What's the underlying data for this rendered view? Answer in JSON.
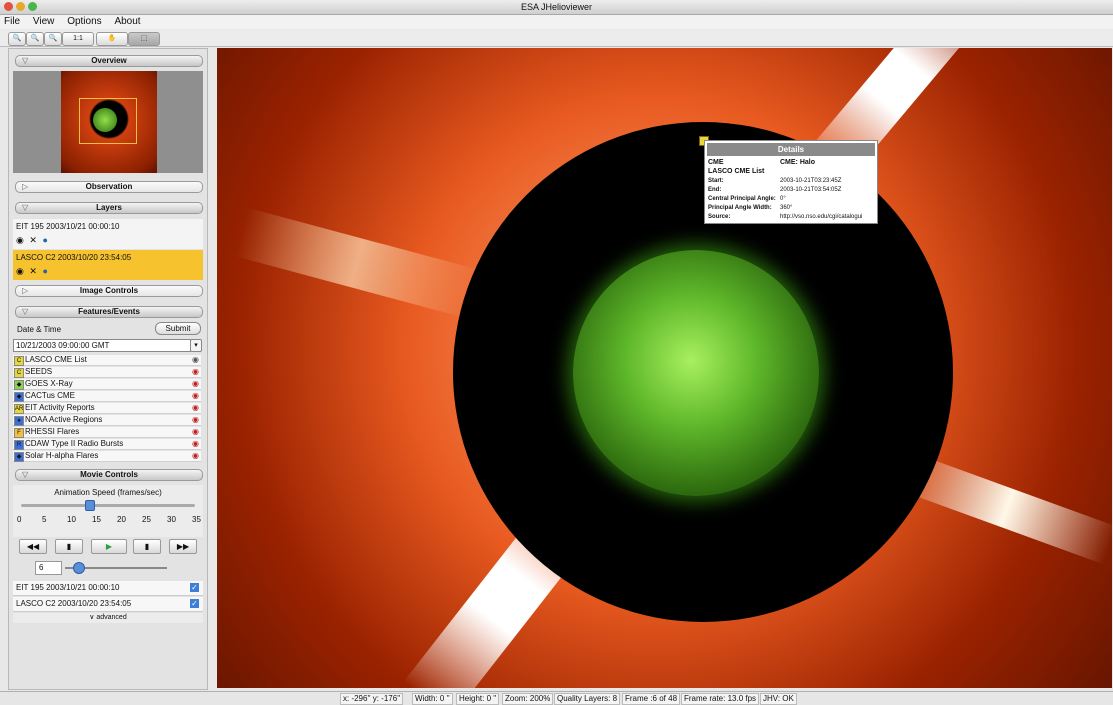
{
  "window": {
    "title": "ESA JHelioviewer",
    "buttons": [
      {
        "name": "close-window-button",
        "color": "#e3513f"
      },
      {
        "name": "minimize-window-button",
        "color": "#e6a92a"
      },
      {
        "name": "zoom-window-button",
        "color": "#4bb44b"
      }
    ]
  },
  "menu": [
    "File",
    "View",
    "Options",
    "About"
  ],
  "toolbar": {
    "zoom_in_icon": "zoom-in-icon",
    "zoom_out_icon": "zoom-out-icon",
    "zoom_fit_icon": "zoom-fit-icon",
    "zoom_1to1_label": "1:1",
    "pan_icon": "pan-icon",
    "select_icon": "select-icon"
  },
  "overview": {
    "header": "Overview"
  },
  "observation": {
    "header": "Observation"
  },
  "layers": {
    "header": "Layers",
    "items": [
      {
        "label": "EIT 195 2003/10/21 00:00:10",
        "selected": false
      },
      {
        "label": "LASCO C2 2003/10/20 23:54:05",
        "selected": true
      }
    ]
  },
  "image_controls": {
    "header": "Image Controls"
  },
  "features_events": {
    "header": "Features/Events",
    "date_label": "Date & Time",
    "submit_label": "Submit",
    "date_value": "10/21/2003 09:00:00 GMT",
    "catalogs": [
      {
        "label": "LASCO CME List",
        "icon": "C",
        "color": "#e5d63a",
        "visible": true
      },
      {
        "label": "SEEDS",
        "icon": "C",
        "color": "#e5d63a",
        "visible": false
      },
      {
        "label": "GOES X-Ray",
        "icon": "◆",
        "color": "#8ccf57",
        "visible": false
      },
      {
        "label": "CACTus CME",
        "icon": "◆",
        "color": "#3a6fd8",
        "visible": false
      },
      {
        "label": "EIT Activity Reports",
        "icon": "AR",
        "color": "#e5d63a",
        "visible": false
      },
      {
        "label": "NOAA Active Regions",
        "icon": "●",
        "color": "#3a6fd8",
        "visible": false
      },
      {
        "label": "RHESSI Flares",
        "icon": "F",
        "color": "#f0c040",
        "visible": false
      },
      {
        "label": "CDAW Type II Radio Bursts",
        "icon": "R",
        "color": "#3a6fd8",
        "visible": false
      },
      {
        "label": "Solar H-alpha Flares",
        "icon": "◆",
        "color": "#3a6fd8",
        "visible": false
      }
    ]
  },
  "movie_controls": {
    "header": "Movie Controls",
    "speed_label": "Animation Speed (frames/sec)",
    "speed_ticks": [
      "0",
      "5",
      "10",
      "15",
      "20",
      "25",
      "30",
      "35"
    ],
    "speed_value_fraction": 0.39,
    "frame_value": "6",
    "frame_fraction": 0.125,
    "layers": [
      {
        "label": "EIT 195 2003/10/21 00:00:10",
        "checked": true
      },
      {
        "label": "LASCO C2 2003/10/20 23:54:05",
        "checked": true
      }
    ],
    "advanced_label": "advanced"
  },
  "details": {
    "title": "Details",
    "type_label": "CME",
    "type_value": "CME: Halo",
    "catalog": "LASCO CME List",
    "rows": [
      {
        "key": "Start:",
        "value": "2003-10-21T03:23:45Z"
      },
      {
        "key": "End:",
        "value": "2003-10-21T03:54:05Z"
      },
      {
        "key": "Central Principal Angle:",
        "value": "0°"
      },
      {
        "key": "Principal Angle Width:",
        "value": "360°"
      },
      {
        "key": "Source:",
        "value": "http://vso.nso.edu/cgi/catalogui"
      }
    ]
  },
  "status": {
    "coords": "x: -296'' y: -176''",
    "width": "Width: 0 ''",
    "height": "Height: 0 ''",
    "zoom": "Zoom: 200%",
    "quality": "Quality Layers: 8",
    "frame": "Frame :6 of 48",
    "frame_rate": "Frame rate: 13.0 fps",
    "jhv": "JHV: OK"
  }
}
